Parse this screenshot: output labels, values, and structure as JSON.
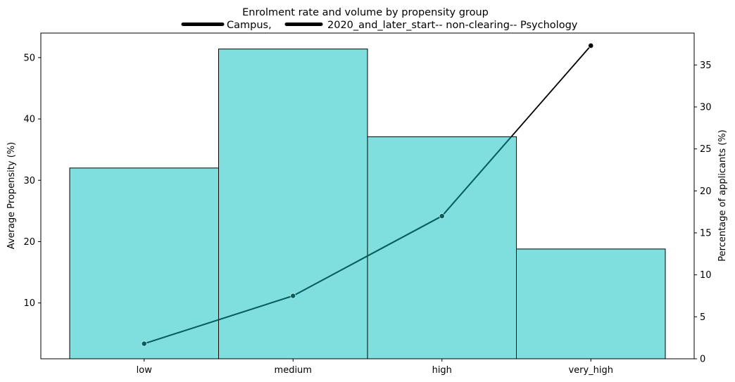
{
  "chart_data": {
    "type": "bar+line",
    "title": "Enrolment rate and volume by propensity group",
    "legend": {
      "placement": "top-center",
      "entries": [
        "Campus,",
        "2020_and_later_start-- non-clearing-- Psychology"
      ]
    },
    "categories": [
      "low",
      "medium",
      "high",
      "very_high"
    ],
    "bars": {
      "values": [
        32.0,
        51.4,
        37.1,
        18.8
      ],
      "color": "#7fdfdf",
      "edge_color": "#000000"
    },
    "line": {
      "values": [
        1.8,
        7.5,
        17.0,
        37.3
      ],
      "color": "#000000",
      "inside_bar_color": "#006060"
    },
    "y_left": {
      "label": "Average Propensity (%)",
      "ticks": [
        "10",
        "20",
        "30",
        "40",
        "50"
      ],
      "lim": [
        0.9,
        54.0
      ]
    },
    "y_right": {
      "label": "Percentage of applicants (%)",
      "ticks": [
        "0",
        "5",
        "10",
        "15",
        "20",
        "25",
        "30",
        "35"
      ],
      "lim": [
        0,
        38.8
      ]
    },
    "grid": false
  }
}
